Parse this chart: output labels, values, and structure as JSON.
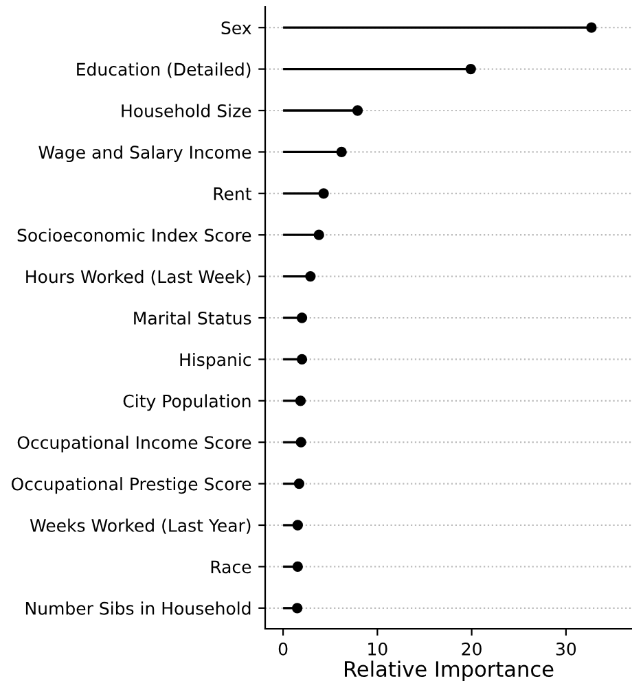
{
  "chart_data": {
    "type": "lollipop",
    "orientation": "horizontal",
    "xlabel": "Relative Importance",
    "categories": [
      "Sex",
      "Education (Detailed)",
      "Household Size",
      "Wage and Salary Income",
      "Rent",
      "Socioeconomic Index Score",
      "Hours Worked (Last Week)",
      "Marital Status",
      "Hispanic",
      "City Population",
      "Occupational Income Score",
      "Occupational Prestige Score",
      "Weeks Worked (Last Year)",
      "Race",
      "Number Sibs in Household"
    ],
    "values": [
      32.7,
      19.9,
      7.9,
      6.2,
      4.3,
      3.8,
      2.9,
      2.0,
      2.0,
      1.85,
      1.9,
      1.7,
      1.55,
      1.55,
      1.5
    ],
    "color": "#000000",
    "marker": "circle",
    "xlim": [
      -1.9,
      37
    ],
    "xticks": [
      0,
      10,
      20,
      30
    ],
    "grid": "y"
  }
}
